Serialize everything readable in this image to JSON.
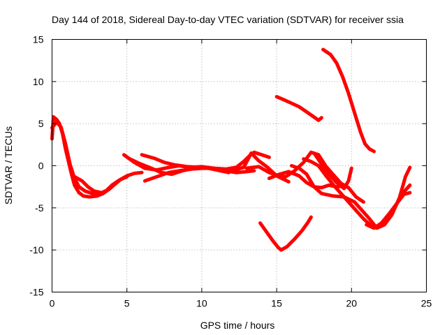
{
  "chart_data": {
    "type": "line",
    "title": "Day 144 of 2018, Sidereal Day-to-day VTEC variation (SDTVAR) for receiver ssia",
    "xlabel": "GPS time / hours",
    "ylabel": "SDTVAR / TECUs",
    "xlim": [
      0,
      25
    ],
    "ylim": [
      -15,
      15
    ],
    "xticks": [
      0,
      5,
      10,
      15,
      20,
      25
    ],
    "yticks": [
      -15,
      -10,
      -5,
      0,
      5,
      10,
      15
    ],
    "grid": true,
    "color": "#ff0000",
    "series": [
      {
        "name": "s1",
        "points": [
          [
            0,
            3.2
          ],
          [
            0.1,
            5.8
          ],
          [
            0.3,
            5.5
          ],
          [
            0.5,
            5.0
          ],
          [
            0.7,
            3.8
          ],
          [
            0.9,
            2.0
          ],
          [
            1.1,
            0.5
          ],
          [
            1.3,
            -1.0
          ],
          [
            1.5,
            -2.3
          ],
          [
            1.8,
            -3.2
          ],
          [
            2.1,
            -3.6
          ],
          [
            2.5,
            -3.7
          ],
          [
            3.0,
            -3.6
          ],
          [
            3.4,
            -3.3
          ],
          [
            3.8,
            -2.8
          ],
          [
            4.2,
            -2.2
          ],
          [
            4.6,
            -1.6
          ],
          [
            5.0,
            -1.2
          ],
          [
            5.5,
            -0.9
          ],
          [
            6.0,
            -0.8
          ]
        ]
      },
      {
        "name": "s2",
        "points": [
          [
            0,
            4.5
          ],
          [
            0.3,
            5.2
          ],
          [
            0.6,
            4.6
          ],
          [
            0.9,
            2.6
          ],
          [
            1.2,
            0.2
          ],
          [
            1.5,
            -1.5
          ],
          [
            1.8,
            -2.5
          ],
          [
            2.2,
            -3.0
          ],
          [
            2.7,
            -3.3
          ],
          [
            3.2,
            -3.4
          ],
          [
            3.6,
            -3.0
          ],
          [
            4.0,
            -2.3
          ],
          [
            4.5,
            -1.7
          ],
          [
            5.0,
            -1.3
          ]
        ]
      },
      {
        "name": "s3",
        "points": [
          [
            1.5,
            -1.3
          ],
          [
            2.0,
            -1.8
          ],
          [
            2.4,
            -2.5
          ],
          [
            2.8,
            -3.0
          ],
          [
            3.3,
            -3.2
          ],
          [
            3.8,
            -2.8
          ]
        ]
      },
      {
        "name": "s4",
        "points": [
          [
            4.8,
            1.3
          ],
          [
            5.5,
            0.4
          ],
          [
            6.2,
            -0.3
          ],
          [
            7.0,
            -0.5
          ],
          [
            7.8,
            -0.2
          ],
          [
            8.5,
            0.0
          ],
          [
            9.2,
            -0.2
          ],
          [
            10.0,
            -0.1
          ],
          [
            10.8,
            -0.3
          ],
          [
            11.5,
            -0.6
          ],
          [
            12.3,
            -0.8
          ],
          [
            13.0,
            -0.7
          ],
          [
            13.5,
            -0.6
          ]
        ]
      },
      {
        "name": "s5",
        "points": [
          [
            5.2,
            0.8
          ],
          [
            5.8,
            0.3
          ],
          [
            6.5,
            -0.2
          ],
          [
            7.3,
            -0.8
          ],
          [
            8.0,
            -1.0
          ],
          [
            8.7,
            -0.6
          ],
          [
            9.5,
            -0.3
          ],
          [
            10.2,
            -0.2
          ],
          [
            11.0,
            -0.5
          ],
          [
            11.8,
            -0.8
          ]
        ]
      },
      {
        "name": "s6",
        "points": [
          [
            6.2,
            -1.8
          ],
          [
            7.0,
            -1.3
          ],
          [
            7.8,
            -0.8
          ],
          [
            8.5,
            -0.6
          ],
          [
            9.3,
            -0.4
          ],
          [
            10.0,
            -0.3
          ],
          [
            10.8,
            -0.3
          ],
          [
            11.6,
            -0.4
          ],
          [
            12.3,
            -0.2
          ],
          [
            12.8,
            0.5
          ],
          [
            13.2,
            1.2
          ],
          [
            13.5,
            1.6
          ],
          [
            14.0,
            1.3
          ],
          [
            14.5,
            1.0
          ]
        ]
      },
      {
        "name": "s7",
        "points": [
          [
            6.0,
            1.3
          ],
          [
            6.8,
            0.9
          ],
          [
            7.5,
            0.4
          ],
          [
            8.2,
            0.1
          ],
          [
            9.0,
            -0.1
          ],
          [
            10.0,
            -0.2
          ],
          [
            11.0,
            -0.4
          ],
          [
            12.0,
            -0.6
          ],
          [
            12.8,
            -0.2
          ],
          [
            13.3,
            1.5
          ],
          [
            13.8,
            0.6
          ],
          [
            14.4,
            -0.2
          ],
          [
            15.0,
            -1.2
          ],
          [
            15.8,
            -1.9
          ]
        ]
      },
      {
        "name": "s8",
        "points": [
          [
            13.0,
            -0.3
          ],
          [
            13.8,
            -0.1
          ],
          [
            14.5,
            -0.8
          ],
          [
            15.0,
            -1.1
          ],
          [
            15.6,
            -1.3
          ],
          [
            16.2,
            -0.6
          ],
          [
            16.8,
            0.4
          ],
          [
            17.3,
            1.6
          ],
          [
            17.8,
            1.3
          ],
          [
            18.3,
            -0.1
          ],
          [
            18.8,
            -1.1
          ],
          [
            19.3,
            -2.1
          ],
          [
            19.8,
            -2.6
          ],
          [
            20.3,
            -3.7
          ],
          [
            20.8,
            -4.3
          ]
        ]
      },
      {
        "name": "s9",
        "points": [
          [
            14.5,
            -1.5
          ],
          [
            15.2,
            -1.0
          ],
          [
            15.8,
            -0.7
          ],
          [
            16.5,
            -1.2
          ],
          [
            17.0,
            -2.0
          ],
          [
            17.5,
            -2.5
          ],
          [
            18.0,
            -2.6
          ],
          [
            18.5,
            -2.3
          ],
          [
            19.0,
            -2.5
          ],
          [
            19.5,
            -2.4
          ]
        ]
      },
      {
        "name": "s10",
        "points": [
          [
            16.0,
            0.0
          ],
          [
            16.5,
            -0.3
          ],
          [
            17.0,
            -1.0
          ],
          [
            17.5,
            -2.5
          ],
          [
            18.0,
            -3.3
          ],
          [
            18.8,
            -3.6
          ],
          [
            19.5,
            -3.7
          ],
          [
            20.2,
            -4.3
          ],
          [
            20.7,
            -5.3
          ],
          [
            21.2,
            -6.3
          ],
          [
            21.6,
            -7.2
          ],
          [
            22.0,
            -7.1
          ],
          [
            22.5,
            -6.2
          ],
          [
            23.0,
            -4.6
          ],
          [
            23.5,
            -3.1
          ],
          [
            23.9,
            -2.3
          ]
        ]
      },
      {
        "name": "s11",
        "points": [
          [
            16.8,
            0.8
          ],
          [
            17.3,
            0.5
          ],
          [
            17.8,
            0.0
          ],
          [
            18.3,
            -1.2
          ],
          [
            18.8,
            -2.3
          ],
          [
            19.3,
            -3.3
          ],
          [
            19.8,
            -4.3
          ],
          [
            20.3,
            -5.3
          ],
          [
            20.8,
            -6.3
          ],
          [
            21.3,
            -7.1
          ],
          [
            21.7,
            -7.4
          ],
          [
            22.2,
            -7.0
          ],
          [
            22.7,
            -5.8
          ],
          [
            23.2,
            -3.8
          ],
          [
            23.6,
            -1.3
          ],
          [
            23.9,
            -0.2
          ]
        ]
      },
      {
        "name": "s12",
        "points": [
          [
            17.5,
            1.5
          ],
          [
            18.0,
            0.2
          ],
          [
            18.5,
            -1.0
          ],
          [
            19.0,
            -2.0
          ],
          [
            19.5,
            -2.7
          ],
          [
            19.8,
            -1.8
          ],
          [
            20.0,
            -0.3
          ]
        ]
      },
      {
        "name": "s13",
        "points": [
          [
            21.0,
            -7.0
          ],
          [
            21.5,
            -7.4
          ],
          [
            22.0,
            -6.8
          ],
          [
            22.6,
            -5.5
          ],
          [
            23.1,
            -4.3
          ],
          [
            23.5,
            -3.4
          ],
          [
            23.9,
            -3.2
          ]
        ]
      },
      {
        "name": "s14",
        "points": [
          [
            18.1,
            13.8
          ],
          [
            18.6,
            13.2
          ],
          [
            19.0,
            12.2
          ],
          [
            19.4,
            10.6
          ],
          [
            19.8,
            8.6
          ],
          [
            20.2,
            6.3
          ],
          [
            20.6,
            4.0
          ],
          [
            20.9,
            2.6
          ],
          [
            21.2,
            2.0
          ],
          [
            21.5,
            1.7
          ]
        ]
      },
      {
        "name": "s15",
        "points": [
          [
            15.0,
            8.2
          ],
          [
            15.4,
            7.9
          ],
          [
            15.9,
            7.5
          ],
          [
            16.5,
            7.0
          ],
          [
            17.0,
            6.4
          ],
          [
            17.4,
            5.9
          ],
          [
            17.8,
            5.4
          ],
          [
            18.0,
            5.7
          ]
        ]
      },
      {
        "name": "s16",
        "points": [
          [
            13.9,
            -6.8
          ],
          [
            14.3,
            -7.8
          ],
          [
            14.7,
            -8.8
          ],
          [
            15.1,
            -9.7
          ],
          [
            15.3,
            -10.0
          ],
          [
            15.7,
            -9.6
          ],
          [
            16.2,
            -8.7
          ],
          [
            16.7,
            -7.7
          ],
          [
            17.1,
            -6.7
          ],
          [
            17.3,
            -6.1
          ]
        ]
      }
    ]
  }
}
